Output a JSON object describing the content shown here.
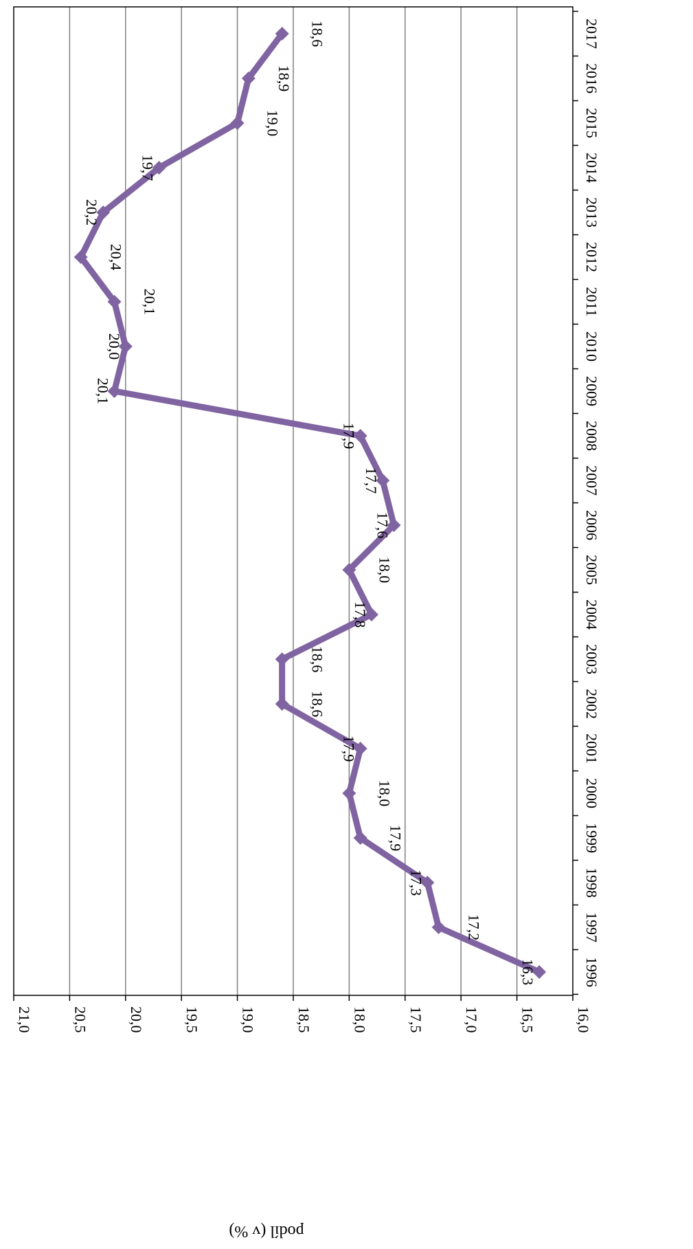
{
  "chart_data": {
    "type": "line",
    "xlabel": "",
    "ylabel": "podíl (v %)",
    "ylim": [
      16.0,
      21.0
    ],
    "y_ticks": [
      "16,0",
      "16,5",
      "17,0",
      "17,5",
      "18,0",
      "18,5",
      "19,0",
      "19,5",
      "20,0",
      "20,5",
      "21,0"
    ],
    "grid": true,
    "orientation": "rotated 90° clockwise (page shown sideways)",
    "categories": [
      "1996",
      "1997",
      "1998",
      "1999",
      "2000",
      "2001",
      "2002",
      "2003",
      "2004",
      "2005",
      "2006",
      "2007",
      "2008",
      "2009",
      "2010",
      "2011",
      "2012",
      "2013",
      "2014",
      "2015",
      "2016",
      "2017"
    ],
    "values": [
      16.3,
      17.2,
      17.3,
      17.9,
      18.0,
      17.9,
      18.6,
      18.6,
      17.8,
      18.0,
      17.6,
      17.7,
      17.9,
      20.1,
      20.0,
      20.1,
      20.4,
      20.2,
      19.7,
      19.0,
      18.9,
      18.6
    ],
    "data_labels": [
      "16,3",
      "17,2",
      "17,3",
      "17,9",
      "18,0",
      "17,9",
      "18,6",
      "18,6",
      "17,8",
      "18,0",
      "17,6",
      "17,7",
      "17,9",
      "20,1",
      "20,0",
      "20,1",
      "20,4",
      "20,2",
      "19,7",
      "19,0",
      "18,9",
      "18,6"
    ],
    "series_color": "#8064a2",
    "grid_color": "#808080"
  }
}
